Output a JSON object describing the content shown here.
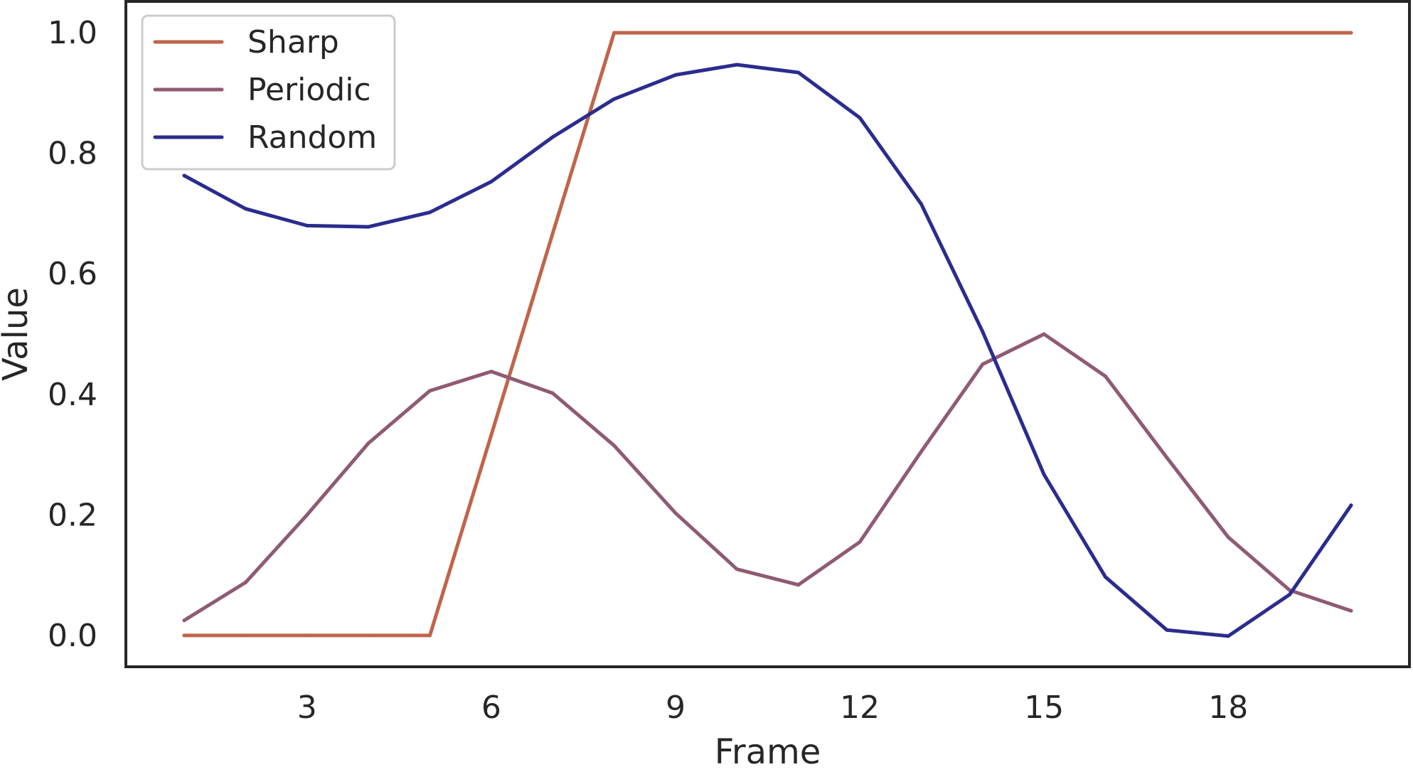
{
  "chart_data": {
    "type": "line",
    "title": "",
    "xlabel": "Frame",
    "ylabel": "Value",
    "x": [
      1,
      2,
      3,
      4,
      5,
      6,
      7,
      8,
      9,
      10,
      11,
      12,
      13,
      14,
      15,
      16,
      17,
      18,
      19,
      20
    ],
    "xlim": [
      0.05,
      20.95
    ],
    "ylim": [
      -0.052,
      1.052
    ],
    "xticks": [
      3,
      6,
      9,
      12,
      15,
      18
    ],
    "xtick_labels": [
      "3",
      "6",
      "9",
      "12",
      "15",
      "18"
    ],
    "yticks": [
      0.0,
      0.2,
      0.4,
      0.6,
      0.8,
      1.0
    ],
    "ytick_labels": [
      "0.0",
      "0.2",
      "0.4",
      "0.6",
      "0.8",
      "1.0"
    ],
    "grid": false,
    "legend_position": "top-left",
    "series": [
      {
        "name": "Sharp",
        "color": "#c0644a",
        "values": [
          0,
          0,
          0,
          0,
          0,
          0.333,
          0.667,
          1.0,
          1.0,
          1.0,
          1.0,
          1.0,
          1.0,
          1.0,
          1.0,
          1.0,
          1.0,
          1.0,
          1.0,
          1.0
        ]
      },
      {
        "name": "Periodic",
        "color": "#8f5a74",
        "values": [
          0.025,
          0.088,
          0.2,
          0.319,
          0.406,
          0.438,
          0.402,
          0.315,
          0.203,
          0.11,
          0.084,
          0.155,
          0.305,
          0.45,
          0.5,
          0.43,
          0.295,
          0.163,
          0.075,
          0.041
        ]
      },
      {
        "name": "Random",
        "color": "#2a2c8e",
        "values": [
          0.763,
          0.708,
          0.68,
          0.678,
          0.702,
          0.753,
          0.827,
          0.89,
          0.93,
          0.947,
          0.934,
          0.859,
          0.716,
          0.504,
          0.267,
          0.097,
          0.009,
          -0.001,
          0.068,
          0.216
        ]
      }
    ]
  }
}
